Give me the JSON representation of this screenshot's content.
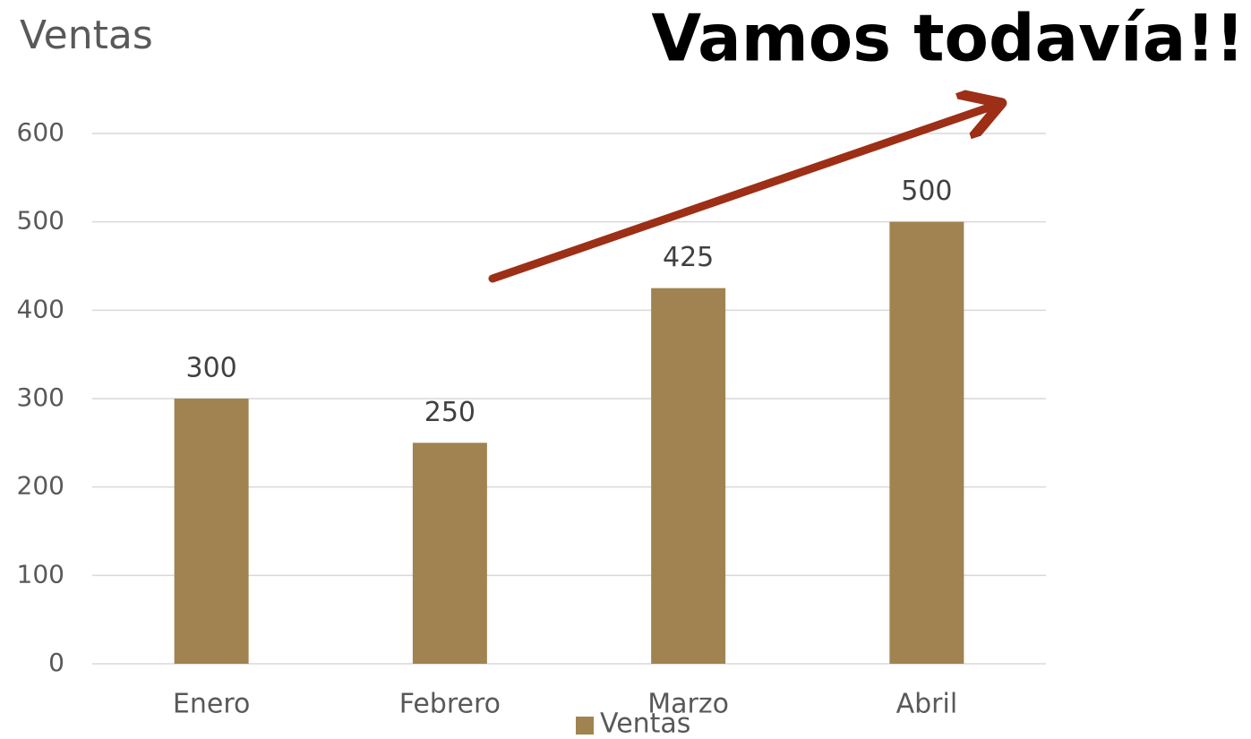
{
  "chart_data": {
    "type": "bar",
    "title": "Ventas",
    "annotation": "Vamos todavía!!",
    "categories": [
      "Enero",
      "Febrero",
      "Marzo",
      "Abril"
    ],
    "series": [
      {
        "name": "Ventas",
        "color": "#a08350",
        "values": [
          300,
          250,
          425,
          500
        ]
      }
    ],
    "ylim": [
      0,
      600
    ],
    "yticks": [
      0,
      100,
      200,
      300,
      400,
      500,
      600
    ],
    "grid": true,
    "legend": "bottom"
  }
}
